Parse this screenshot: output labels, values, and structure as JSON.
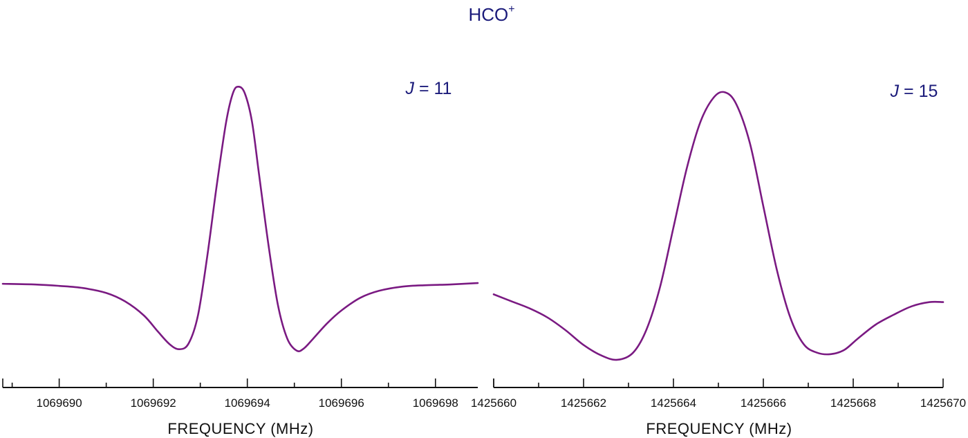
{
  "title": "HCO",
  "title_superscript": "+",
  "colors": {
    "trace": "#7a1a82",
    "text_accent": "#1a1a7a"
  },
  "chart_data": [
    {
      "type": "line",
      "label_symbol": "J",
      "label_rest": " = 11",
      "xlabel": "FREQUENCY  (MHz)",
      "ylabel": "",
      "xlim": [
        1069688.8,
        1069698.9
      ],
      "ylim": [
        -1.1,
        3.0
      ],
      "xticks": [
        1069690,
        1069692,
        1069694,
        1069696,
        1069698
      ],
      "xtick_labels": [
        "1069690",
        "1069692",
        "1069694",
        "1069696",
        "1069698"
      ],
      "grid": false,
      "series": [
        {
          "x": [
            1069688.8,
            1069689.5,
            1069690.0,
            1069690.5,
            1069691.0,
            1069691.4,
            1069691.8,
            1069692.1,
            1069692.35,
            1069692.55,
            1069692.75,
            1069692.95,
            1069693.15,
            1069693.35,
            1069693.55,
            1069693.7,
            1069693.82,
            1069693.95,
            1069694.1,
            1069694.25,
            1069694.45,
            1069694.65,
            1069694.85,
            1069695.05,
            1069695.2,
            1069695.4,
            1069695.7,
            1069696.0,
            1069696.4,
            1069696.8,
            1069697.3,
            1069697.8,
            1069698.3,
            1069698.9
          ],
          "y": [
            0.0,
            -0.01,
            -0.03,
            -0.06,
            -0.13,
            -0.25,
            -0.45,
            -0.68,
            -0.86,
            -0.93,
            -0.85,
            -0.45,
            0.4,
            1.4,
            2.3,
            2.72,
            2.8,
            2.7,
            2.3,
            1.55,
            0.55,
            -0.3,
            -0.78,
            -0.95,
            -0.92,
            -0.78,
            -0.56,
            -0.38,
            -0.2,
            -0.1,
            -0.04,
            -0.02,
            -0.01,
            0.01
          ]
        }
      ]
    },
    {
      "type": "line",
      "label_symbol": "J",
      "label_rest": " = 15",
      "xlabel": "FREQUENCY  (MHz)",
      "ylabel": "",
      "xlim": [
        1425660.0,
        1425670.0
      ],
      "ylim": [
        -1.1,
        3.0
      ],
      "xticks": [
        1425660,
        1425662,
        1425664,
        1425666,
        1425668,
        1425670
      ],
      "xtick_labels": [
        "1425660",
        "1425662",
        "1425664",
        "1425666",
        "1425668",
        "1425670"
      ],
      "grid": false,
      "series": [
        {
          "x": [
            1425660.0,
            1425660.4,
            1425660.8,
            1425661.2,
            1425661.6,
            1425662.0,
            1425662.4,
            1425662.75,
            1425663.1,
            1425663.4,
            1425663.7,
            1425664.0,
            1425664.3,
            1425664.6,
            1425664.9,
            1425665.15,
            1425665.4,
            1425665.7,
            1425666.0,
            1425666.3,
            1425666.6,
            1425666.9,
            1425667.2,
            1425667.5,
            1425667.8,
            1425668.1,
            1425668.5,
            1425668.9,
            1425669.3,
            1425669.7,
            1425670.0
          ],
          "y": [
            -0.15,
            -0.25,
            -0.35,
            -0.48,
            -0.66,
            -0.87,
            -1.02,
            -1.08,
            -0.98,
            -0.65,
            -0.05,
            0.8,
            1.65,
            2.3,
            2.65,
            2.72,
            2.55,
            2.0,
            1.1,
            0.2,
            -0.48,
            -0.86,
            -0.98,
            -1.0,
            -0.94,
            -0.78,
            -0.58,
            -0.44,
            -0.32,
            -0.26,
            -0.26
          ]
        }
      ]
    }
  ]
}
